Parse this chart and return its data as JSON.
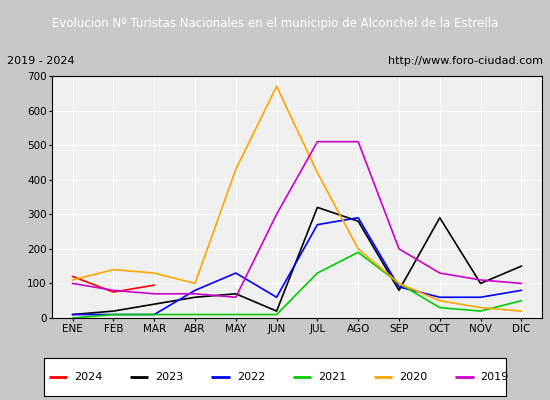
{
  "title": "Evolucion Nº Turistas Nacionales en el municipio de Alconchel de la Estrella",
  "subtitle_left": "2019 - 2024",
  "subtitle_right": "http://www.foro-ciudad.com",
  "months": [
    "ENE",
    "FEB",
    "MAR",
    "ABR",
    "MAY",
    "JUN",
    "JUL",
    "AGO",
    "SEP",
    "OCT",
    "NOV",
    "DIC"
  ],
  "series": {
    "2024": [
      120,
      75,
      95,
      null,
      null,
      null,
      null,
      null,
      null,
      null,
      null,
      null
    ],
    "2023": [
      10,
      20,
      40,
      60,
      70,
      20,
      320,
      280,
      80,
      290,
      100,
      150
    ],
    "2022": [
      10,
      10,
      10,
      80,
      130,
      60,
      270,
      290,
      90,
      60,
      60,
      80
    ],
    "2021": [
      0,
      10,
      10,
      10,
      10,
      10,
      130,
      190,
      100,
      30,
      20,
      50
    ],
    "2020": [
      110,
      140,
      130,
      100,
      430,
      670,
      420,
      200,
      100,
      50,
      30,
      20
    ],
    "2019": [
      100,
      80,
      70,
      70,
      60,
      300,
      510,
      510,
      200,
      130,
      110,
      100
    ]
  },
  "colors": {
    "2024": "#ff0000",
    "2023": "#000000",
    "2022": "#0000ff",
    "2021": "#00cc00",
    "2020": "#ffa500",
    "2019": "#cc00cc"
  },
  "ylim": [
    0,
    700
  ],
  "yticks": [
    0,
    100,
    200,
    300,
    400,
    500,
    600,
    700
  ],
  "title_bg_color": "#4472c4",
  "title_text_color": "#ffffff",
  "plot_bg_color": "#f0f0f0",
  "grid_color": "#ffffff",
  "border_color": "#000000",
  "fig_bg_color": "#c8c8c8"
}
